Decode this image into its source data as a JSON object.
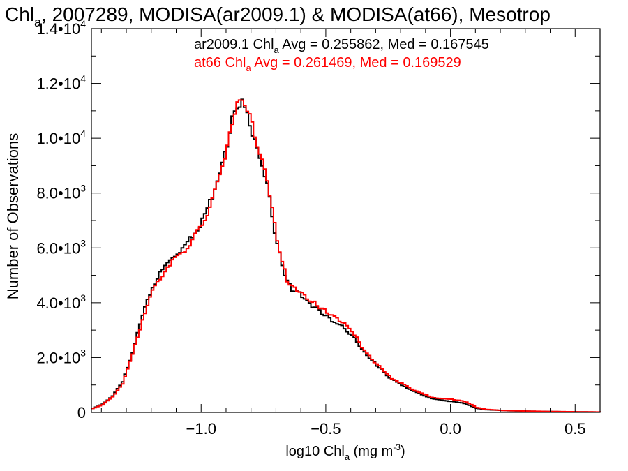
{
  "chart_data": {
    "type": "line",
    "title_parts": {
      "pre": "Chl",
      "sub": "a",
      "post": ", 2007289, MODISA(ar2009.1) & MODISA(at66), Mesotrop"
    },
    "xlabel_parts": {
      "pre": "log10 Chl",
      "sub": "a",
      "post": " (mg m",
      "sup": "-3",
      "end": ")"
    },
    "ylabel": "Number of Observations",
    "xlim": [
      -1.44,
      0.6
    ],
    "ylim": [
      0,
      14000
    ],
    "x_ticks": [
      {
        "value": -1.0,
        "label": "−1.0"
      },
      {
        "value": -0.5,
        "label": "−0.5"
      },
      {
        "value": 0.0,
        "label": "0.0"
      },
      {
        "value": 0.5,
        "label": "0.5"
      }
    ],
    "y_ticks": [
      {
        "value": 0,
        "mant": "0",
        "exp": ""
      },
      {
        "value": 2000,
        "mant": "2.0•10",
        "exp": "3"
      },
      {
        "value": 4000,
        "mant": "4.0•10",
        "exp": "3"
      },
      {
        "value": 6000,
        "mant": "6.0•10",
        "exp": "3"
      },
      {
        "value": 8000,
        "mant": "8.0•10",
        "exp": "3"
      },
      {
        "value": 10000,
        "mant": "1.0•10",
        "exp": "4"
      },
      {
        "value": 12000,
        "mant": "1.2•10",
        "exp": "4"
      },
      {
        "value": 14000,
        "mant": "1.4•10",
        "exp": "4"
      }
    ],
    "annotations": [
      {
        "color": "#000000",
        "pre": "ar2009.1 Chl",
        "sub": "a",
        "post": " Avg = 0.255862, Med = 0.167545"
      },
      {
        "color": "#ff0000",
        "pre": "at66 Chl",
        "sub": "a",
        "post": " Avg = 0.261469, Med = 0.169529"
      }
    ],
    "series": [
      {
        "name": "ar2009.1",
        "color": "#000000",
        "x": [
          -1.44,
          -1.4,
          -1.36,
          -1.32,
          -1.28,
          -1.24,
          -1.2,
          -1.16,
          -1.12,
          -1.08,
          -1.04,
          -1.0,
          -0.96,
          -0.92,
          -0.9,
          -0.88,
          -0.86,
          -0.84,
          -0.82,
          -0.8,
          -0.78,
          -0.76,
          -0.74,
          -0.72,
          -0.7,
          -0.68,
          -0.66,
          -0.64,
          -0.62,
          -0.6,
          -0.58,
          -0.56,
          -0.54,
          -0.52,
          -0.5,
          -0.48,
          -0.46,
          -0.44,
          -0.42,
          -0.4,
          -0.38,
          -0.36,
          -0.34,
          -0.32,
          -0.3,
          -0.28,
          -0.26,
          -0.24,
          -0.2,
          -0.16,
          -0.12,
          -0.08,
          -0.04,
          0.0,
          0.02,
          0.04,
          0.06,
          0.08,
          0.1,
          0.14,
          0.2,
          0.3,
          0.4,
          0.5,
          0.6
        ],
        "y": [
          150,
          300,
          600,
          1100,
          2200,
          3500,
          4600,
          5200,
          5700,
          6000,
          6450,
          7000,
          7900,
          9100,
          9800,
          10700,
          11200,
          11300,
          10900,
          10200,
          9600,
          9000,
          8300,
          7200,
          6100,
          5400,
          4750,
          4500,
          4400,
          4250,
          4050,
          3900,
          3800,
          3600,
          3500,
          3350,
          3250,
          3150,
          3000,
          2800,
          2600,
          2300,
          2100,
          1900,
          1700,
          1550,
          1350,
          1200,
          1000,
          800,
          650,
          500,
          450,
          400,
          370,
          350,
          300,
          220,
          150,
          100,
          70,
          45,
          30,
          20,
          12
        ]
      },
      {
        "name": "at66",
        "color": "#ff0000",
        "x": [
          -1.44,
          -1.4,
          -1.36,
          -1.32,
          -1.28,
          -1.24,
          -1.2,
          -1.16,
          -1.12,
          -1.08,
          -1.04,
          -1.0,
          -0.96,
          -0.92,
          -0.9,
          -0.88,
          -0.86,
          -0.84,
          -0.82,
          -0.8,
          -0.78,
          -0.76,
          -0.74,
          -0.72,
          -0.7,
          -0.68,
          -0.66,
          -0.64,
          -0.62,
          -0.6,
          -0.58,
          -0.56,
          -0.54,
          -0.52,
          -0.5,
          -0.48,
          -0.46,
          -0.44,
          -0.42,
          -0.4,
          -0.38,
          -0.36,
          -0.34,
          -0.32,
          -0.3,
          -0.28,
          -0.26,
          -0.24,
          -0.2,
          -0.16,
          -0.12,
          -0.08,
          -0.04,
          0.0,
          0.02,
          0.04,
          0.06,
          0.08,
          0.1,
          0.14,
          0.2,
          0.3,
          0.4,
          0.5,
          0.6
        ],
        "y": [
          140,
          280,
          560,
          1050,
          2100,
          3400,
          4450,
          5050,
          5550,
          5850,
          6300,
          6850,
          7700,
          9000,
          9700,
          10600,
          11250,
          11450,
          11100,
          10500,
          9800,
          9200,
          8500,
          7400,
          6300,
          5500,
          4850,
          4600,
          4500,
          4350,
          4150,
          4000,
          3950,
          3750,
          3650,
          3500,
          3400,
          3300,
          3150,
          2950,
          2700,
          2400,
          2150,
          1950,
          1750,
          1600,
          1400,
          1250,
          1050,
          850,
          700,
          550,
          500,
          480,
          450,
          420,
          380,
          280,
          180,
          110,
          75,
          48,
          32,
          22,
          14
        ]
      }
    ]
  }
}
